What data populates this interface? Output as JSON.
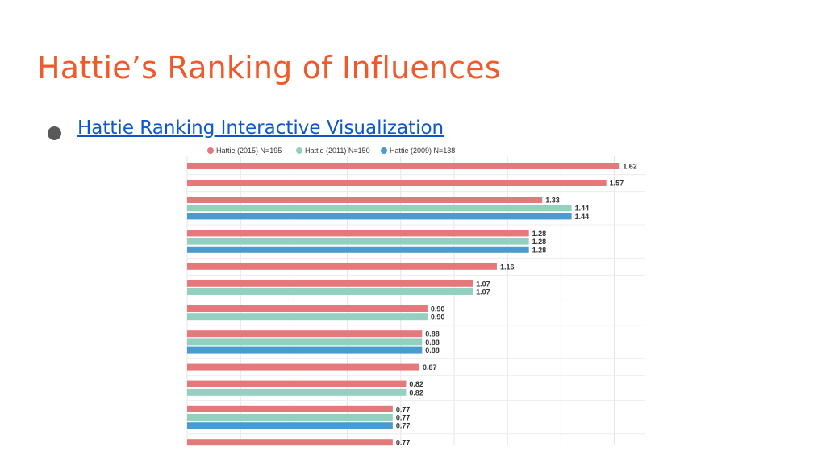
{
  "slide": {
    "title": "Hattie’s Ranking of Influences",
    "bullet_link": "Hattie Ranking Interactive Visualization"
  },
  "chart_data": {
    "type": "bar",
    "orientation": "horizontal",
    "title": "",
    "xlabel": "",
    "ylabel": "",
    "xlim": [
      0,
      1.8
    ],
    "grid": true,
    "legend_position": "top",
    "series": [
      {
        "name": "Hattie (2015) N=195",
        "color": "#e4787b"
      },
      {
        "name": "Hattie (2011) N=150",
        "color": "#94d0c0"
      },
      {
        "name": "Hattie (2009) N=138",
        "color": "#4a9bd0"
      }
    ],
    "groups": [
      {
        "values": [
          1.62,
          null,
          null
        ],
        "labels": [
          "1.62",
          null,
          null
        ]
      },
      {
        "values": [
          1.57,
          null,
          null
        ],
        "labels": [
          "1.57",
          null,
          null
        ]
      },
      {
        "values": [
          1.33,
          1.44,
          1.44
        ],
        "labels": [
          "1.33",
          "1.44",
          "1.44"
        ]
      },
      {
        "values": [
          1.28,
          1.28,
          1.28
        ],
        "labels": [
          "1.28",
          "1.28",
          "1.28"
        ]
      },
      {
        "values": [
          1.16,
          null,
          null
        ],
        "labels": [
          "1.16",
          null,
          null
        ]
      },
      {
        "values": [
          1.07,
          1.07,
          null
        ],
        "labels": [
          "1.07",
          "1.07",
          null
        ]
      },
      {
        "values": [
          0.9,
          0.9,
          null
        ],
        "labels": [
          "0.90",
          "0.90",
          null
        ]
      },
      {
        "values": [
          0.88,
          0.88,
          0.88
        ],
        "labels": [
          "0.88",
          "0.88",
          "0.88"
        ]
      },
      {
        "values": [
          0.87,
          null,
          null
        ],
        "labels": [
          "0.87",
          null,
          null
        ]
      },
      {
        "values": [
          0.82,
          0.82,
          null
        ],
        "labels": [
          "0.82",
          "0.82",
          null
        ]
      },
      {
        "values": [
          0.77,
          0.77,
          0.77
        ],
        "labels": [
          "0.77",
          "0.77",
          "0.77"
        ]
      },
      {
        "values": [
          0.77,
          null,
          null
        ],
        "labels": [
          "0.77",
          null,
          null
        ]
      }
    ]
  }
}
